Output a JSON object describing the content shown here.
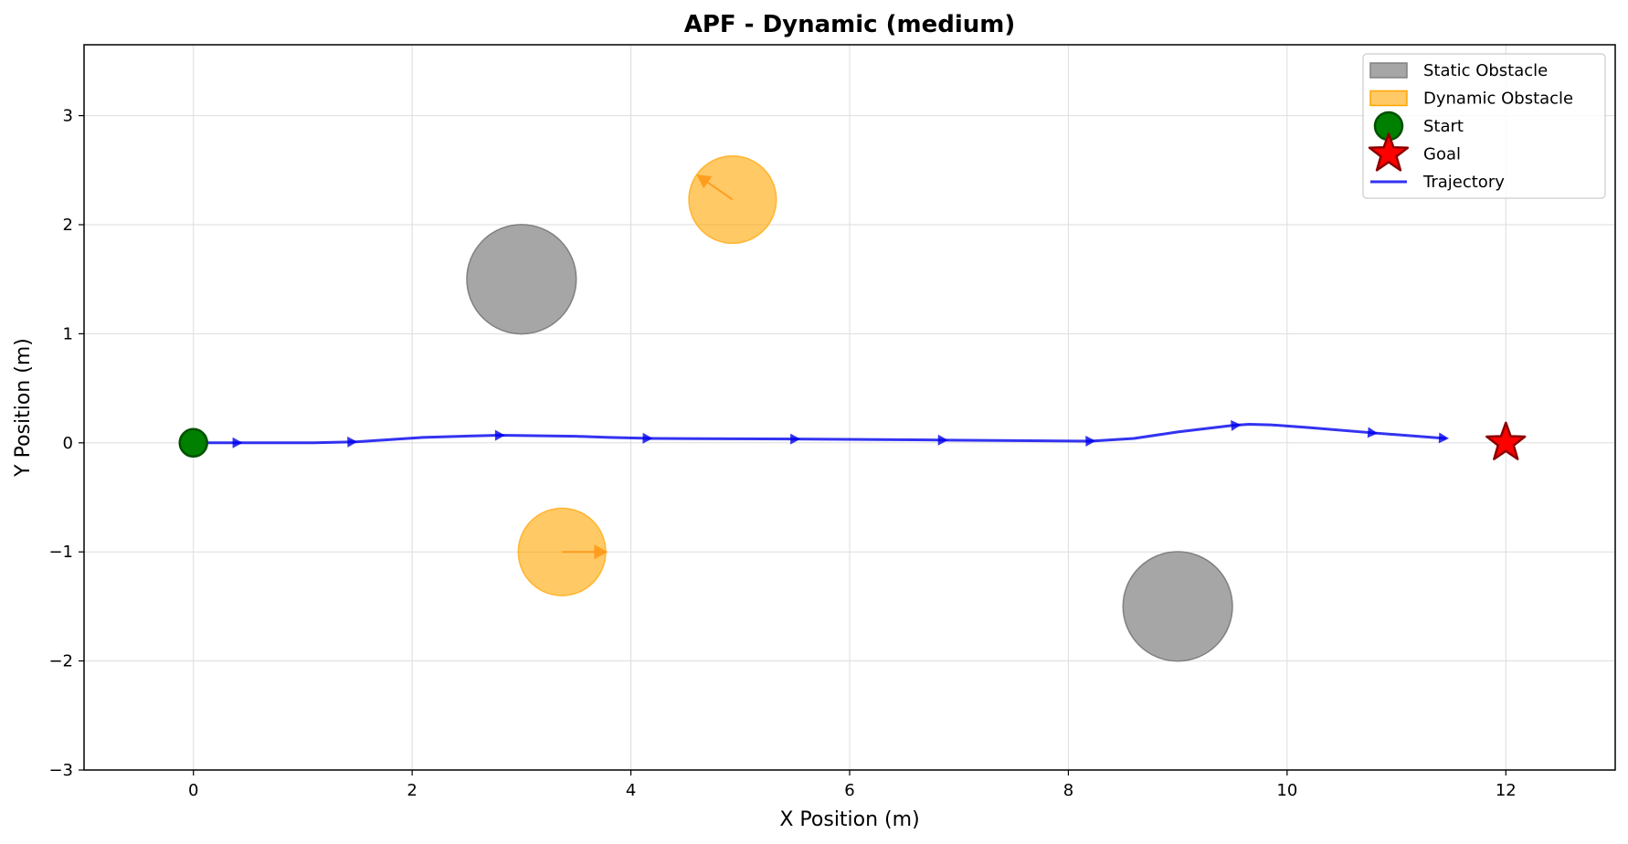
{
  "chart_data": {
    "type": "scatter",
    "title": "APF - Dynamic (medium)",
    "xlabel": "X Position (m)",
    "ylabel": "Y Position (m)",
    "xlim": [
      -1.0,
      13.0
    ],
    "ylim": [
      -3.0,
      3.65
    ],
    "xticks": [
      0,
      2,
      4,
      6,
      8,
      10,
      12
    ],
    "yticks": [
      -3,
      -2,
      -1,
      0,
      1,
      2,
      3
    ],
    "grid": true,
    "legend_position": "top-right",
    "legend": [
      {
        "label": "Static Obstacle",
        "kind": "static_obstacle"
      },
      {
        "label": "Dynamic Obstacle",
        "kind": "dynamic_obstacle"
      },
      {
        "label": "Start",
        "kind": "start"
      },
      {
        "label": "Goal",
        "kind": "goal"
      },
      {
        "label": "Trajectory",
        "kind": "trajectory"
      }
    ],
    "colors": {
      "static_obstacle": "#808080",
      "dynamic_obstacle": "#ffa500",
      "dynamic_arrow": "#ff8c00",
      "start": "#008000",
      "start_edge": "#005000",
      "goal": "#ff0000",
      "goal_edge": "#8b0000",
      "trajectory": "#0000ee",
      "grid": "#dddddd"
    },
    "static_obstacles": [
      {
        "x": 3.0,
        "y": 1.5,
        "r": 0.5
      },
      {
        "x": 9.0,
        "y": -1.5,
        "r": 0.5
      }
    ],
    "dynamic_obstacles": [
      {
        "x": 4.93,
        "y": 2.23,
        "r": 0.4,
        "vx": -0.33,
        "vy": 0.23
      },
      {
        "x": 3.37,
        "y": -1.0,
        "r": 0.4,
        "vx": 0.42,
        "vy": 0.0
      }
    ],
    "start": {
      "x": 0.0,
      "y": 0.0
    },
    "goal": {
      "x": 12.0,
      "y": 0.0
    },
    "trajectory": [
      [
        0.0,
        0.0
      ],
      [
        0.5,
        0.0
      ],
      [
        1.1,
        0.0
      ],
      [
        1.5,
        0.01
      ],
      [
        2.1,
        0.05
      ],
      [
        2.8,
        0.07
      ],
      [
        3.5,
        0.06
      ],
      [
        3.8,
        0.05
      ],
      [
        4.2,
        0.04
      ],
      [
        5.5,
        0.035
      ],
      [
        6.9,
        0.025
      ],
      [
        8.2,
        0.015
      ],
      [
        8.6,
        0.04
      ],
      [
        9.0,
        0.1
      ],
      [
        9.5,
        0.16
      ],
      [
        9.65,
        0.17
      ],
      [
        9.85,
        0.165
      ],
      [
        10.2,
        0.14
      ],
      [
        10.8,
        0.09
      ],
      [
        11.45,
        0.04
      ]
    ],
    "trajectory_arrow_x": [
      0.45,
      1.5,
      2.85,
      4.2,
      5.55,
      6.9,
      8.25,
      9.58,
      10.83,
      11.48
    ]
  }
}
